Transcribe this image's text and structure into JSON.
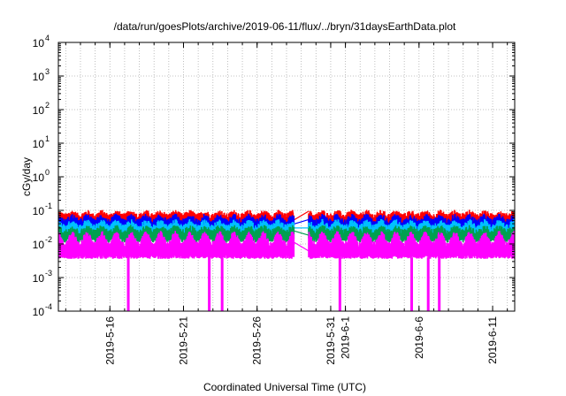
{
  "chart_data": {
    "type": "line",
    "title": "/data/run/goesPlots/archive/2019-06-11/flux/../bryn/31daysEarthData.plot",
    "xlabel": "Coordinated Universal Time (UTC)",
    "ylabel": "cGy/day",
    "yscale": "log",
    "grid": true,
    "xlim": [
      "2019-05-12T12:00",
      "2019-06-12T12:00"
    ],
    "ylim": [
      0.0001,
      10000
    ],
    "y_ticks": [
      {
        "base": "10",
        "exp": "-4",
        "value": 0.0001
      },
      {
        "base": "10",
        "exp": "-3",
        "value": 0.001
      },
      {
        "base": "10",
        "exp": "-2",
        "value": 0.01
      },
      {
        "base": "10",
        "exp": "-1",
        "value": 0.1
      },
      {
        "base": "10",
        "exp": "0",
        "value": 1
      },
      {
        "base": "10",
        "exp": "1",
        "value": 10
      },
      {
        "base": "10",
        "exp": "2",
        "value": 100
      },
      {
        "base": "10",
        "exp": "3",
        "value": 1000
      },
      {
        "base": "10",
        "exp": "4",
        "value": 10000
      }
    ],
    "x_ticks": [
      {
        "label": "2019-5-16",
        "date": "2019-05-16"
      },
      {
        "label": "2019-5-21",
        "date": "2019-05-21"
      },
      {
        "label": "2019-5-26",
        "date": "2019-05-26"
      },
      {
        "label": "2019-5-31",
        "date": "2019-05-31"
      },
      {
        "label": "2019-6-1",
        "date": "2019-06-01"
      },
      {
        "label": "2019-6-6",
        "date": "2019-06-06"
      },
      {
        "label": "2019-6-11",
        "date": "2019-06-11"
      }
    ],
    "data_gap": [
      "2019-05-28T12:00",
      "2019-05-29T12:00"
    ],
    "series": [
      {
        "color": "#ff0000",
        "daily_peak": 0.085,
        "daily_trough": 0.05
      },
      {
        "color": "#0000ff",
        "daily_peak": 0.065,
        "daily_trough": 0.03
      },
      {
        "color": "#00c0ff",
        "daily_peak": 0.045,
        "daily_trough": 0.02
      },
      {
        "color": "#00a050",
        "daily_peak": 0.03,
        "daily_trough": 0.016
      },
      {
        "color": "#ff00ff",
        "daily_peak": 0.02,
        "daily_trough": 0.004
      }
    ],
    "magenta_dropouts": [
      {
        "start": "2019-05-17T03:00",
        "end": "2019-05-17T09:00"
      },
      {
        "start": "2019-05-22T15:00",
        "end": "2019-05-22T21:00"
      },
      {
        "start": "2019-05-23T12:00",
        "end": "2019-05-23T18:00"
      },
      {
        "start": "2019-05-31T12:00",
        "end": "2019-05-31T18:00"
      },
      {
        "start": "2019-06-05T09:00",
        "end": "2019-06-05T15:00"
      },
      {
        "start": "2019-06-06T12:00",
        "end": "2019-06-06T18:00"
      },
      {
        "start": "2019-06-07T06:00",
        "end": "2019-06-07T12:00"
      }
    ]
  }
}
